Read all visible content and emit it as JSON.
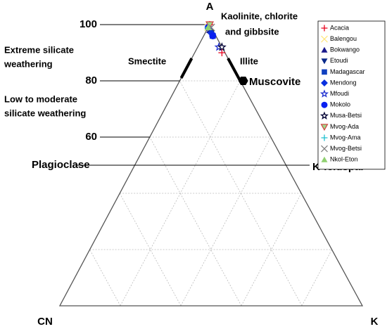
{
  "chart_data": {
    "type": "ternary",
    "apex_labels": {
      "top": "A",
      "left": "CN",
      "right": "K"
    },
    "ylim": [
      0,
      100
    ],
    "yticks": [
      100,
      80,
      60
    ],
    "grid_step": 20,
    "grid": true,
    "feldspar_join": {
      "value": 50,
      "left_label": "Plagioclase",
      "right_label": "K-feldspar"
    },
    "annotations": {
      "kaolinite": [
        "Kaolinite, chlorite",
        "and gibbsite"
      ],
      "extreme": [
        "Extreme silicate",
        "weathering"
      ],
      "low": [
        "Low to moderate",
        "silicate weathering"
      ],
      "smectite": "Smectite",
      "illite": "Illite",
      "muscovite": "Muscovite"
    },
    "reference_points": [
      {
        "name": "Muscovite",
        "a": 80,
        "k": 21,
        "color": "#000000",
        "marker": "hexagon"
      }
    ],
    "reference_ranges": [
      {
        "name": "Smectite",
        "edge": "left",
        "a": [
          88,
          81
        ]
      },
      {
        "name": "Illite",
        "edge": "right",
        "a": [
          88,
          80
        ]
      }
    ],
    "legend": "right",
    "series": [
      {
        "name": "Acacia",
        "color": "#e8001c",
        "marker": "plus",
        "a": [
          100,
          90
        ],
        "k": [
          0,
          9
        ]
      },
      {
        "name": "Balengou",
        "color": "#ffe680",
        "marker": "x",
        "a": [
          99
        ],
        "k": [
          0
        ]
      },
      {
        "name": "Bokwango",
        "color": "#1a1a8c",
        "marker": "triangle",
        "a": [
          98
        ],
        "k": [
          1
        ]
      },
      {
        "name": "Etoudi",
        "color": "#0a2a8a",
        "marker": "triangle-down",
        "a": [
          97
        ],
        "k": [
          2
        ]
      },
      {
        "name": "Madagascar",
        "color": "#1040c0",
        "marker": "square",
        "a": [
          96
        ],
        "k": [
          3
        ]
      },
      {
        "name": "Mendong",
        "color": "#0a30e0",
        "marker": "diamond",
        "a": [
          97
        ],
        "k": [
          2
        ]
      },
      {
        "name": "Mfoudi",
        "color": "#2030d0",
        "marker": "star-open",
        "a": [
          92
        ],
        "k": [
          7
        ]
      },
      {
        "name": "Mokolo",
        "color": "#0a20f0",
        "marker": "circle",
        "a": [
          96,
          99
        ],
        "k": [
          3,
          0
        ]
      },
      {
        "name": "Musa-Betsi",
        "color": "#000033",
        "marker": "star-open",
        "a": [
          92
        ],
        "k": [
          8
        ]
      },
      {
        "name": "Mvog-Ada",
        "color": "#d04040",
        "marker": "triangle-down-open",
        "a": [
          100
        ],
        "k": [
          0
        ]
      },
      {
        "name": "Mvog-Ama",
        "color": "#20c0d0",
        "marker": "plus",
        "a": [
          99
        ],
        "k": [
          0
        ]
      },
      {
        "name": "Mvog-Betsi",
        "color": "#808080",
        "marker": "x",
        "a": [
          99
        ],
        "k": [
          1
        ]
      },
      {
        "name": "Nkol-Eton",
        "color": "#90d070",
        "marker": "triangle",
        "a": [
          99
        ],
        "k": [
          0
        ]
      }
    ]
  }
}
